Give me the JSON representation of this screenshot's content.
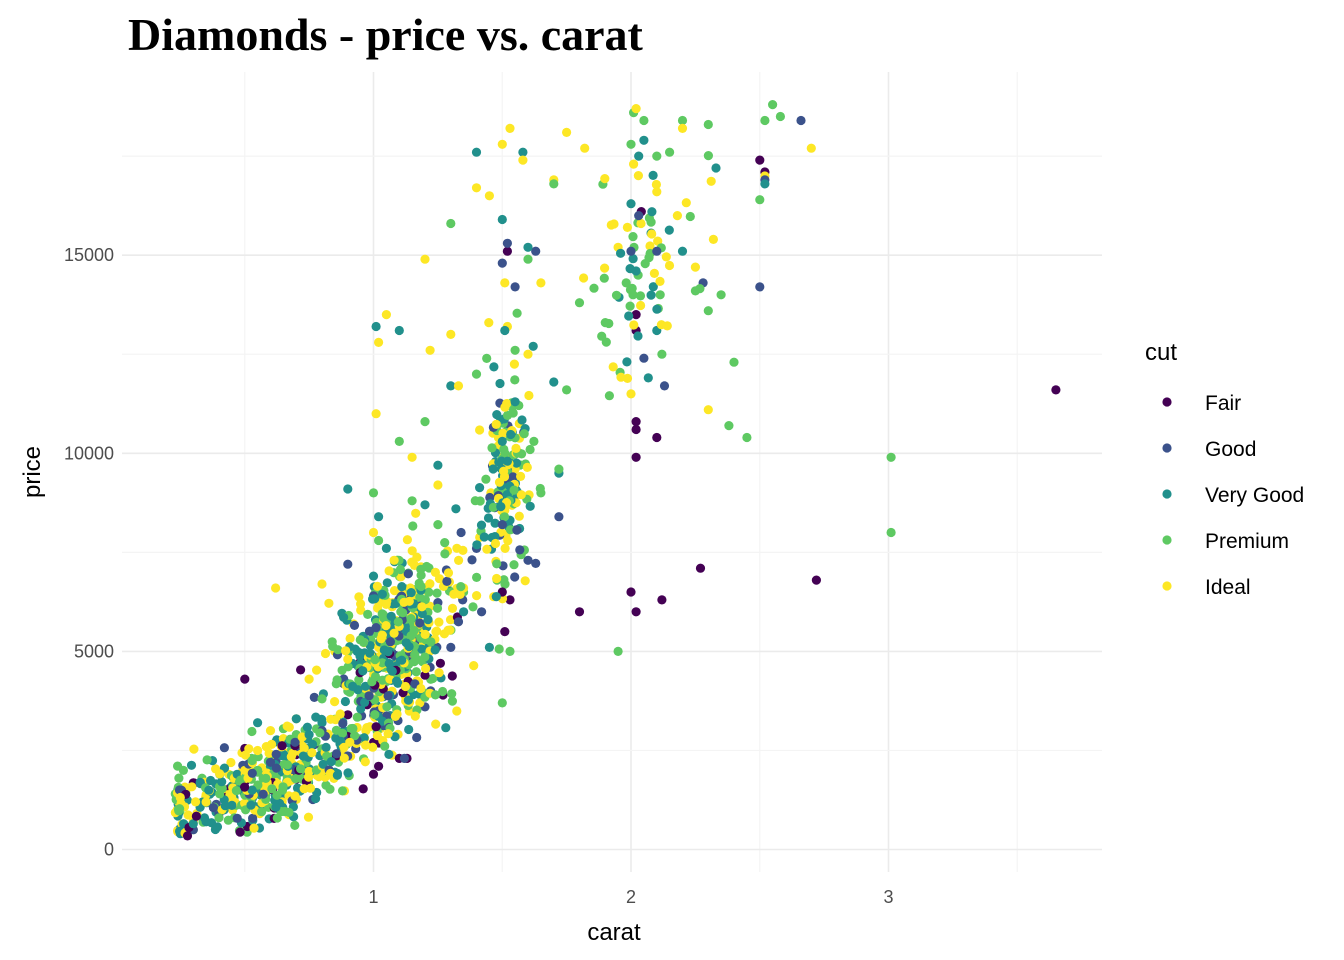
{
  "chart_data": {
    "type": "scatter",
    "title": "Diamonds - price vs. carat",
    "xlabel": "carat",
    "ylabel": "price",
    "xlim": [
      0.0,
      3.85
    ],
    "ylim": [
      -600,
      19400
    ],
    "x_ticks": [
      1,
      2,
      3
    ],
    "x_tick_labels": [
      "1",
      "2",
      "3"
    ],
    "y_ticks": [
      0,
      5000,
      10000,
      15000
    ],
    "y_tick_labels": [
      "0",
      "5000",
      "10000",
      "15000"
    ],
    "grid": true,
    "legend": {
      "title": "cut",
      "position": "right"
    },
    "series": [
      {
        "name": "Fair",
        "color": "#440154",
        "points": [
          [
            0.3,
            1680
          ],
          [
            0.5,
            4300
          ],
          [
            0.5,
            2550
          ],
          [
            0.51,
            580
          ],
          [
            0.7,
            1780
          ],
          [
            0.9,
            2850
          ],
          [
            0.96,
            1530
          ],
          [
            1.0,
            1900
          ],
          [
            1.0,
            2700
          ],
          [
            1.01,
            3100
          ],
          [
            1.1,
            2300
          ],
          [
            1.13,
            2300
          ],
          [
            1.2,
            4400
          ],
          [
            1.27,
            3900
          ],
          [
            1.5,
            6500
          ],
          [
            1.53,
            6300
          ],
          [
            1.52,
            15100
          ],
          [
            1.51,
            5500
          ],
          [
            1.8,
            6000
          ],
          [
            2.0,
            6500
          ],
          [
            2.02,
            6000
          ],
          [
            2.02,
            10600
          ],
          [
            2.02,
            9900
          ],
          [
            2.02,
            13100
          ],
          [
            2.02,
            10800
          ],
          [
            2.02,
            13500
          ],
          [
            2.12,
            6300
          ],
          [
            2.1,
            10400
          ],
          [
            2.27,
            7100
          ],
          [
            2.52,
            17100
          ],
          [
            2.5,
            17400
          ],
          [
            2.72,
            6800
          ],
          [
            3.65,
            11600
          ],
          [
            2.04,
            16100
          ],
          [
            1.26,
            4700
          ],
          [
            0.71,
            2000
          ],
          [
            0.9,
            3400
          ],
          [
            1.02,
            2100
          ]
        ]
      },
      {
        "name": "Good",
        "color": "#3b528b",
        "points": [
          [
            0.3,
            500
          ],
          [
            0.4,
            900
          ],
          [
            0.6,
            2200
          ],
          [
            0.7,
            2600
          ],
          [
            0.72,
            1900
          ],
          [
            0.9,
            7200
          ],
          [
            1.0,
            4800
          ],
          [
            1.01,
            5600
          ],
          [
            1.02,
            3500
          ],
          [
            1.12,
            2300
          ],
          [
            1.1,
            4600
          ],
          [
            1.2,
            3600
          ],
          [
            1.22,
            4600
          ],
          [
            1.3,
            5100
          ],
          [
            1.34,
            8000
          ],
          [
            1.4,
            7600
          ],
          [
            1.42,
            6000
          ],
          [
            1.5,
            8200
          ],
          [
            1.5,
            14800
          ],
          [
            1.52,
            15300
          ],
          [
            1.55,
            14200
          ],
          [
            1.6,
            7300
          ],
          [
            1.63,
            15100
          ],
          [
            1.72,
            8400
          ],
          [
            2.0,
            15100
          ],
          [
            2.03,
            16000
          ],
          [
            2.1,
            15100
          ],
          [
            2.13,
            11700
          ],
          [
            2.28,
            14300
          ],
          [
            2.5,
            14200
          ],
          [
            2.66,
            18400
          ],
          [
            2.52,
            16900
          ],
          [
            2.05,
            12400
          ],
          [
            1.08,
            4900
          ],
          [
            0.8,
            3000
          ],
          [
            1.0,
            6400
          ]
        ]
      },
      {
        "name": "Very Good",
        "color": "#21908c",
        "points": [
          [
            0.25,
            400
          ],
          [
            0.3,
            650
          ],
          [
            0.35,
            700
          ],
          [
            0.42,
            1000
          ],
          [
            0.5,
            1400
          ],
          [
            0.55,
            3200
          ],
          [
            0.6,
            2100
          ],
          [
            0.65,
            2400
          ],
          [
            0.7,
            3300
          ],
          [
            0.75,
            2900
          ],
          [
            0.8,
            3200
          ],
          [
            0.9,
            9100
          ],
          [
            0.95,
            4700
          ],
          [
            1.0,
            6900
          ],
          [
            1.01,
            13200
          ],
          [
            1.02,
            8400
          ],
          [
            1.05,
            7600
          ],
          [
            1.1,
            13100
          ],
          [
            1.15,
            5100
          ],
          [
            1.2,
            8700
          ],
          [
            1.25,
            9700
          ],
          [
            1.3,
            11700
          ],
          [
            1.35,
            6000
          ],
          [
            1.4,
            17600
          ],
          [
            1.45,
            5100
          ],
          [
            1.5,
            15900
          ],
          [
            1.51,
            13100
          ],
          [
            1.52,
            9800
          ],
          [
            1.55,
            11300
          ],
          [
            1.58,
            17600
          ],
          [
            1.6,
            15200
          ],
          [
            1.7,
            11800
          ],
          [
            1.72,
            9500
          ],
          [
            2.0,
            16300
          ],
          [
            2.02,
            14600
          ],
          [
            2.03,
            17500
          ],
          [
            2.1,
            13100
          ],
          [
            2.2,
            15100
          ],
          [
            2.33,
            17200
          ],
          [
            2.52,
            16800
          ],
          [
            2.05,
            17900
          ],
          [
            1.62,
            12700
          ],
          [
            0.85,
            1950
          ],
          [
            1.06,
            2400
          ],
          [
            1.5,
            10300
          ],
          [
            1.32,
            8600
          ]
        ]
      },
      {
        "name": "Premium",
        "color": "#5ec962",
        "points": [
          [
            0.3,
            500
          ],
          [
            0.4,
            800
          ],
          [
            0.5,
            1500
          ],
          [
            0.55,
            2000
          ],
          [
            0.6,
            2400
          ],
          [
            0.7,
            2900
          ],
          [
            0.8,
            3800
          ],
          [
            0.9,
            4000
          ],
          [
            1.0,
            9000
          ],
          [
            1.02,
            7800
          ],
          [
            1.05,
            5600
          ],
          [
            1.1,
            10300
          ],
          [
            1.15,
            8800
          ],
          [
            1.2,
            10800
          ],
          [
            1.25,
            8200
          ],
          [
            1.3,
            15800
          ],
          [
            1.35,
            6500
          ],
          [
            1.4,
            12000
          ],
          [
            1.5,
            3700
          ],
          [
            1.51,
            10000
          ],
          [
            1.53,
            5000
          ],
          [
            1.55,
            12600
          ],
          [
            1.6,
            14900
          ],
          [
            1.65,
            9000
          ],
          [
            1.7,
            16800
          ],
          [
            1.72,
            9600
          ],
          [
            1.8,
            13800
          ],
          [
            1.9,
            13300
          ],
          [
            1.95,
            5000
          ],
          [
            2.0,
            17800
          ],
          [
            2.01,
            18600
          ],
          [
            2.05,
            18400
          ],
          [
            2.1,
            17500
          ],
          [
            2.12,
            12500
          ],
          [
            2.2,
            18400
          ],
          [
            2.25,
            14100
          ],
          [
            2.3,
            13600
          ],
          [
            2.35,
            14000
          ],
          [
            2.4,
            12300
          ],
          [
            2.38,
            10700
          ],
          [
            2.45,
            10400
          ],
          [
            2.5,
            16400
          ],
          [
            2.52,
            18400
          ],
          [
            2.55,
            18800
          ],
          [
            2.58,
            18500
          ],
          [
            3.01,
            9900
          ],
          [
            3.01,
            8000
          ],
          [
            2.3,
            18300
          ],
          [
            2.15,
            17600
          ],
          [
            1.75,
            11600
          ],
          [
            1.48,
            6800
          ],
          [
            1.12,
            5400
          ]
        ]
      },
      {
        "name": "Ideal",
        "color": "#fde725",
        "points": [
          [
            0.24,
            450
          ],
          [
            0.3,
            700
          ],
          [
            0.35,
            1200
          ],
          [
            0.4,
            1650
          ],
          [
            0.5,
            2000
          ],
          [
            0.55,
            2500
          ],
          [
            0.6,
            3000
          ],
          [
            0.62,
            6600
          ],
          [
            0.65,
            2800
          ],
          [
            0.7,
            3300
          ],
          [
            0.75,
            4300
          ],
          [
            0.8,
            6700
          ],
          [
            0.9,
            4800
          ],
          [
            0.95,
            6200
          ],
          [
            1.0,
            8000
          ],
          [
            1.01,
            11000
          ],
          [
            1.02,
            12800
          ],
          [
            1.05,
            13500
          ],
          [
            1.1,
            6900
          ],
          [
            1.15,
            9900
          ],
          [
            1.2,
            14900
          ],
          [
            1.22,
            12600
          ],
          [
            1.3,
            13000
          ],
          [
            1.33,
            11700
          ],
          [
            1.35,
            6600
          ],
          [
            1.4,
            16700
          ],
          [
            1.45,
            16500
          ],
          [
            1.5,
            17800
          ],
          [
            1.51,
            14300
          ],
          [
            1.52,
            13200
          ],
          [
            1.55,
            9600
          ],
          [
            1.58,
            17400
          ],
          [
            1.6,
            12500
          ],
          [
            1.65,
            14300
          ],
          [
            1.7,
            16900
          ],
          [
            1.75,
            18100
          ],
          [
            1.82,
            17700
          ],
          [
            2.0,
            11500
          ],
          [
            2.01,
            17300
          ],
          [
            2.02,
            18700
          ],
          [
            2.1,
            16600
          ],
          [
            2.2,
            18200
          ],
          [
            2.25,
            14700
          ],
          [
            2.3,
            11100
          ],
          [
            2.32,
            15400
          ],
          [
            2.52,
            17000
          ],
          [
            2.7,
            17700
          ],
          [
            1.53,
            18200
          ],
          [
            1.25,
            9200
          ],
          [
            1.08,
            7300
          ],
          [
            0.85,
            5000
          ],
          [
            0.45,
            1300
          ],
          [
            1.18,
            3700
          ],
          [
            2.18,
            16000
          ],
          [
            1.95,
            15200
          ]
        ]
      }
    ],
    "dense_clusters": [
      {
        "name": "Fair",
        "cx": 0.55,
        "cy": 1400,
        "sx": 0.22,
        "sy": 700,
        "n": 20
      },
      {
        "name": "Very Good",
        "cx": 0.6,
        "cy": 1600,
        "sx": 0.25,
        "sy": 900,
        "n": 120
      },
      {
        "name": "Premium",
        "cx": 0.65,
        "cy": 1800,
        "sx": 0.28,
        "sy": 900,
        "n": 130
      },
      {
        "name": "Ideal",
        "cx": 0.6,
        "cy": 1600,
        "sx": 0.25,
        "sy": 900,
        "n": 150
      },
      {
        "name": "Good",
        "cx": 0.7,
        "cy": 2000,
        "sx": 0.25,
        "sy": 900,
        "n": 40
      },
      {
        "name": "Fair",
        "cx": 1.05,
        "cy": 4200,
        "sx": 0.12,
        "sy": 1200,
        "n": 18
      },
      {
        "name": "Good",
        "cx": 1.1,
        "cy": 5200,
        "sx": 0.12,
        "sy": 1500,
        "n": 50
      },
      {
        "name": "Very Good",
        "cx": 1.05,
        "cy": 5600,
        "sx": 0.1,
        "sy": 1500,
        "n": 120
      },
      {
        "name": "Premium",
        "cx": 1.1,
        "cy": 5600,
        "sx": 0.12,
        "sy": 1700,
        "n": 140
      },
      {
        "name": "Ideal",
        "cx": 1.1,
        "cy": 5800,
        "sx": 0.12,
        "sy": 1700,
        "n": 150
      },
      {
        "name": "Very Good",
        "cx": 1.5,
        "cy": 9500,
        "sx": 0.04,
        "sy": 2000,
        "n": 50
      },
      {
        "name": "Premium",
        "cx": 1.52,
        "cy": 10000,
        "sx": 0.06,
        "sy": 2200,
        "n": 55
      },
      {
        "name": "Ideal",
        "cx": 1.51,
        "cy": 10500,
        "sx": 0.05,
        "sy": 2200,
        "n": 55
      },
      {
        "name": "Good",
        "cx": 1.51,
        "cy": 9000,
        "sx": 0.05,
        "sy": 2000,
        "n": 20
      },
      {
        "name": "Premium",
        "cx": 2.05,
        "cy": 15000,
        "sx": 0.1,
        "sy": 2300,
        "n": 30
      },
      {
        "name": "Ideal",
        "cx": 2.05,
        "cy": 15500,
        "sx": 0.1,
        "sy": 2000,
        "n": 25
      },
      {
        "name": "Very Good",
        "cx": 2.03,
        "cy": 15000,
        "sx": 0.05,
        "sy": 2000,
        "n": 15
      }
    ]
  }
}
